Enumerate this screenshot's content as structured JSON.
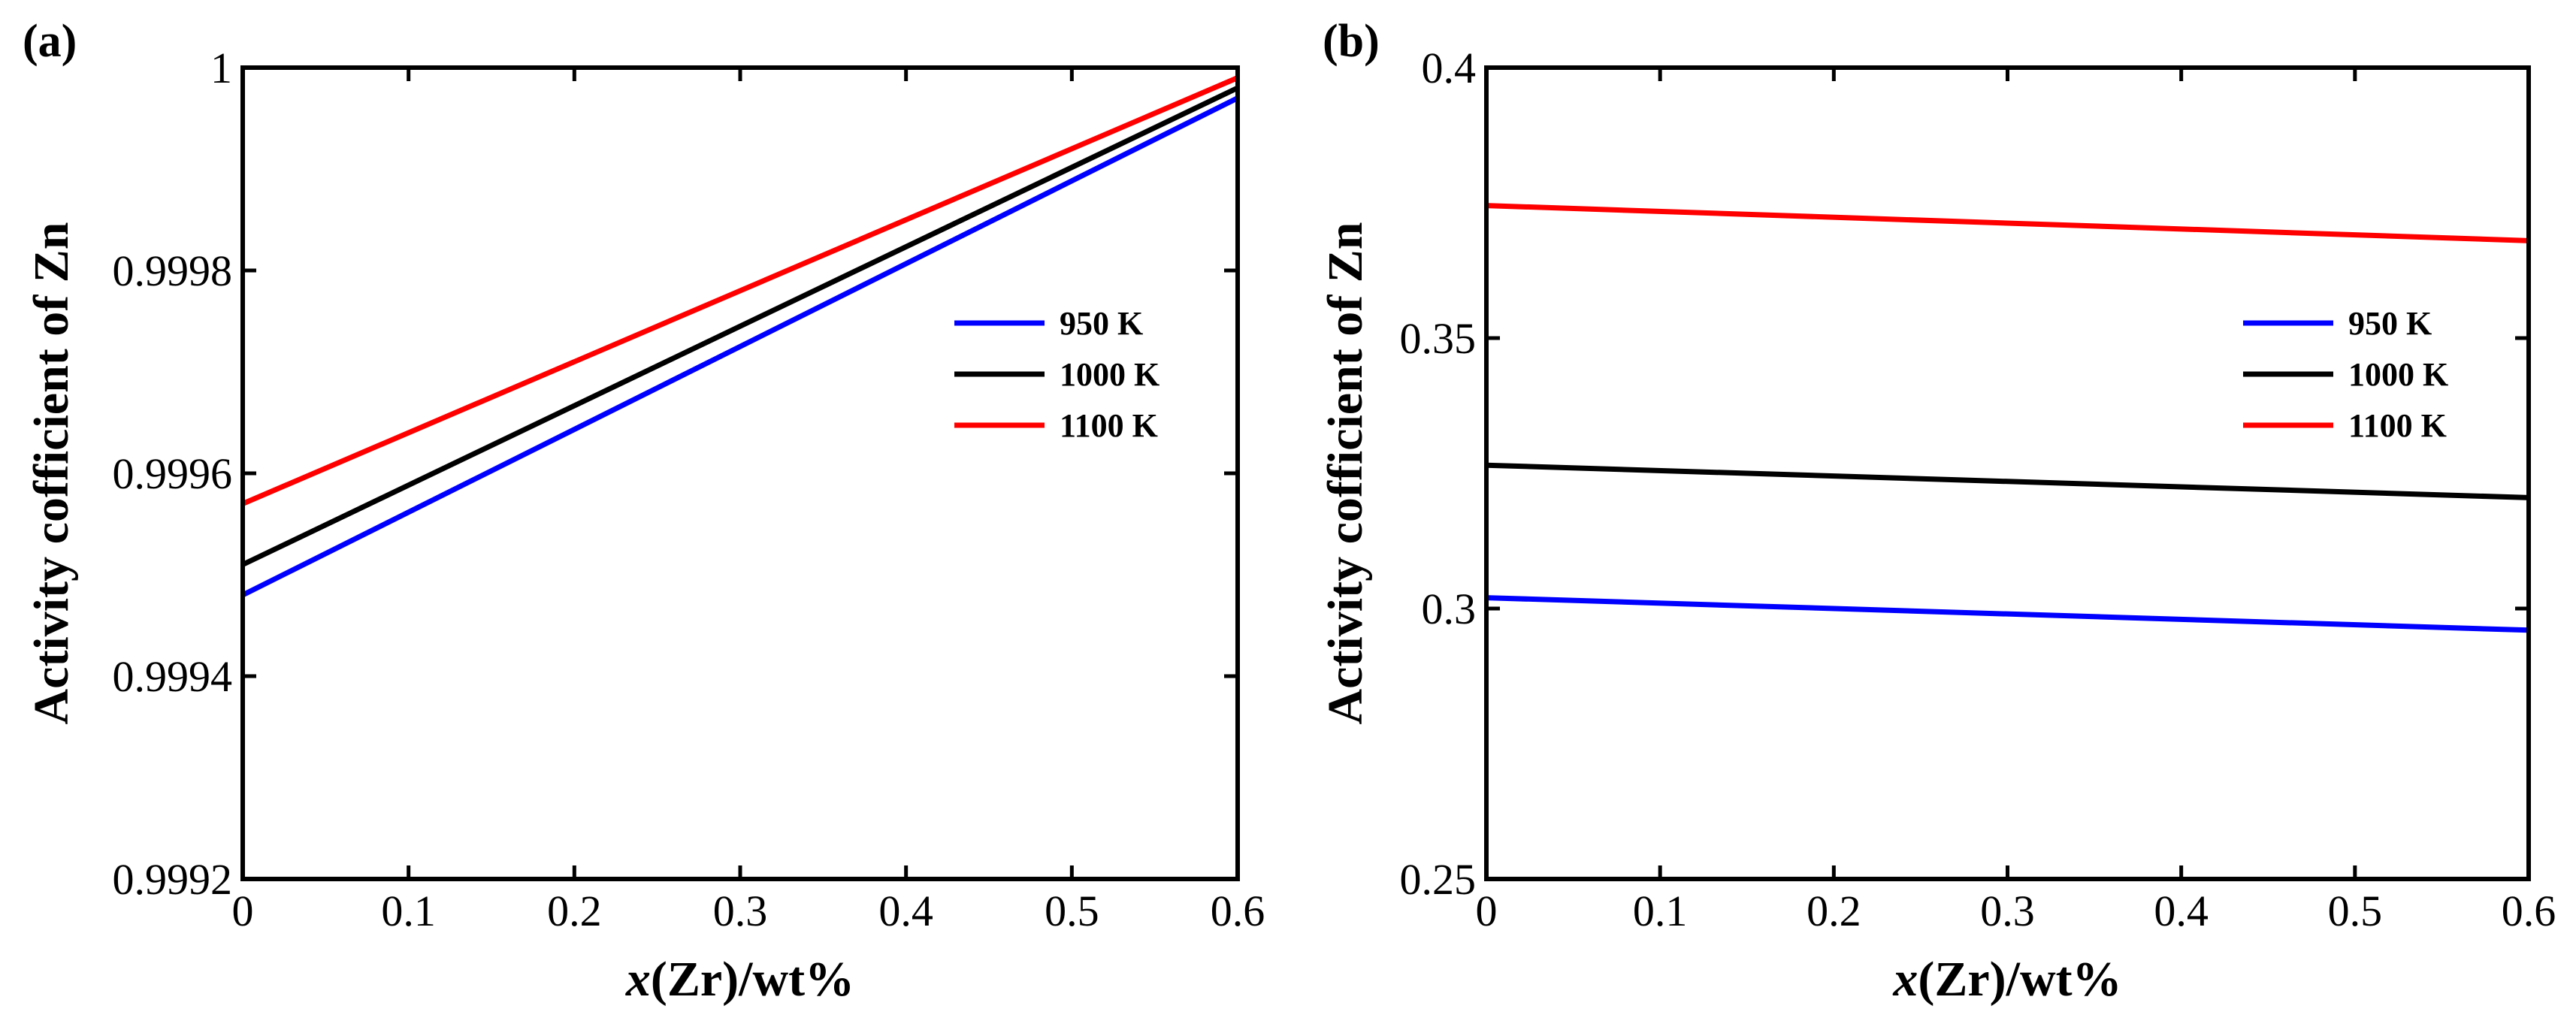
{
  "chart_data": [
    {
      "type": "line",
      "panel_label": "(a)",
      "xlabel_italic": "x",
      "xlabel_rest": "(Zr)/wt%",
      "ylabel": "Activity cofficient of Zn",
      "xlim": [
        0,
        0.6
      ],
      "ylim": [
        0.9992,
        1.0
      ],
      "xticks": [
        0,
        0.1,
        0.2,
        0.3,
        0.4,
        0.5,
        0.6
      ],
      "xtick_labels": [
        "0",
        "0.1",
        "0.2",
        "0.3",
        "0.4",
        "0.5",
        "0.6"
      ],
      "yticks": [
        0.9992,
        0.9994,
        0.9996,
        0.9998,
        1.0
      ],
      "ytick_labels": [
        "0.9992",
        "0.9994",
        "0.9996",
        "0.9998",
        "1"
      ],
      "grid": false,
      "legend_position": "right",
      "series": [
        {
          "name": "950 K",
          "color": "#0000ff",
          "x": [
            0,
            0.6
          ],
          "y": [
            0.99948,
            0.99997
          ]
        },
        {
          "name": "1000 K",
          "color": "#000000",
          "x": [
            0,
            0.6
          ],
          "y": [
            0.99951,
            0.99998
          ]
        },
        {
          "name": "1100 K",
          "color": "#ff0000",
          "x": [
            0,
            0.6
          ],
          "y": [
            0.99957,
            0.99999
          ]
        }
      ]
    },
    {
      "type": "line",
      "panel_label": "(b)",
      "xlabel_italic": "x",
      "xlabel_rest": "(Zr)/wt%",
      "ylabel": "Activity cofficient of Zn",
      "xlim": [
        0,
        0.6
      ],
      "ylim": [
        0.25,
        0.4
      ],
      "xticks": [
        0,
        0.1,
        0.2,
        0.3,
        0.4,
        0.5,
        0.6
      ],
      "xtick_labels": [
        "0",
        "0.1",
        "0.2",
        "0.3",
        "0.4",
        "0.5",
        "0.6"
      ],
      "yticks": [
        0.25,
        0.3,
        0.35,
        0.4
      ],
      "ytick_labels": [
        "0.25",
        "0.3",
        "0.35",
        "0.4"
      ],
      "grid": false,
      "legend_position": "right",
      "series": [
        {
          "name": "950 K",
          "color": "#0000ff",
          "x": [
            0,
            0.6
          ],
          "y": [
            0.302,
            0.296
          ]
        },
        {
          "name": "1000 K",
          "color": "#000000",
          "x": [
            0,
            0.6
          ],
          "y": [
            0.3265,
            0.3205
          ]
        },
        {
          "name": "1100 K",
          "color": "#ff0000",
          "x": [
            0,
            0.6
          ],
          "y": [
            0.3745,
            0.368
          ]
        }
      ]
    }
  ]
}
